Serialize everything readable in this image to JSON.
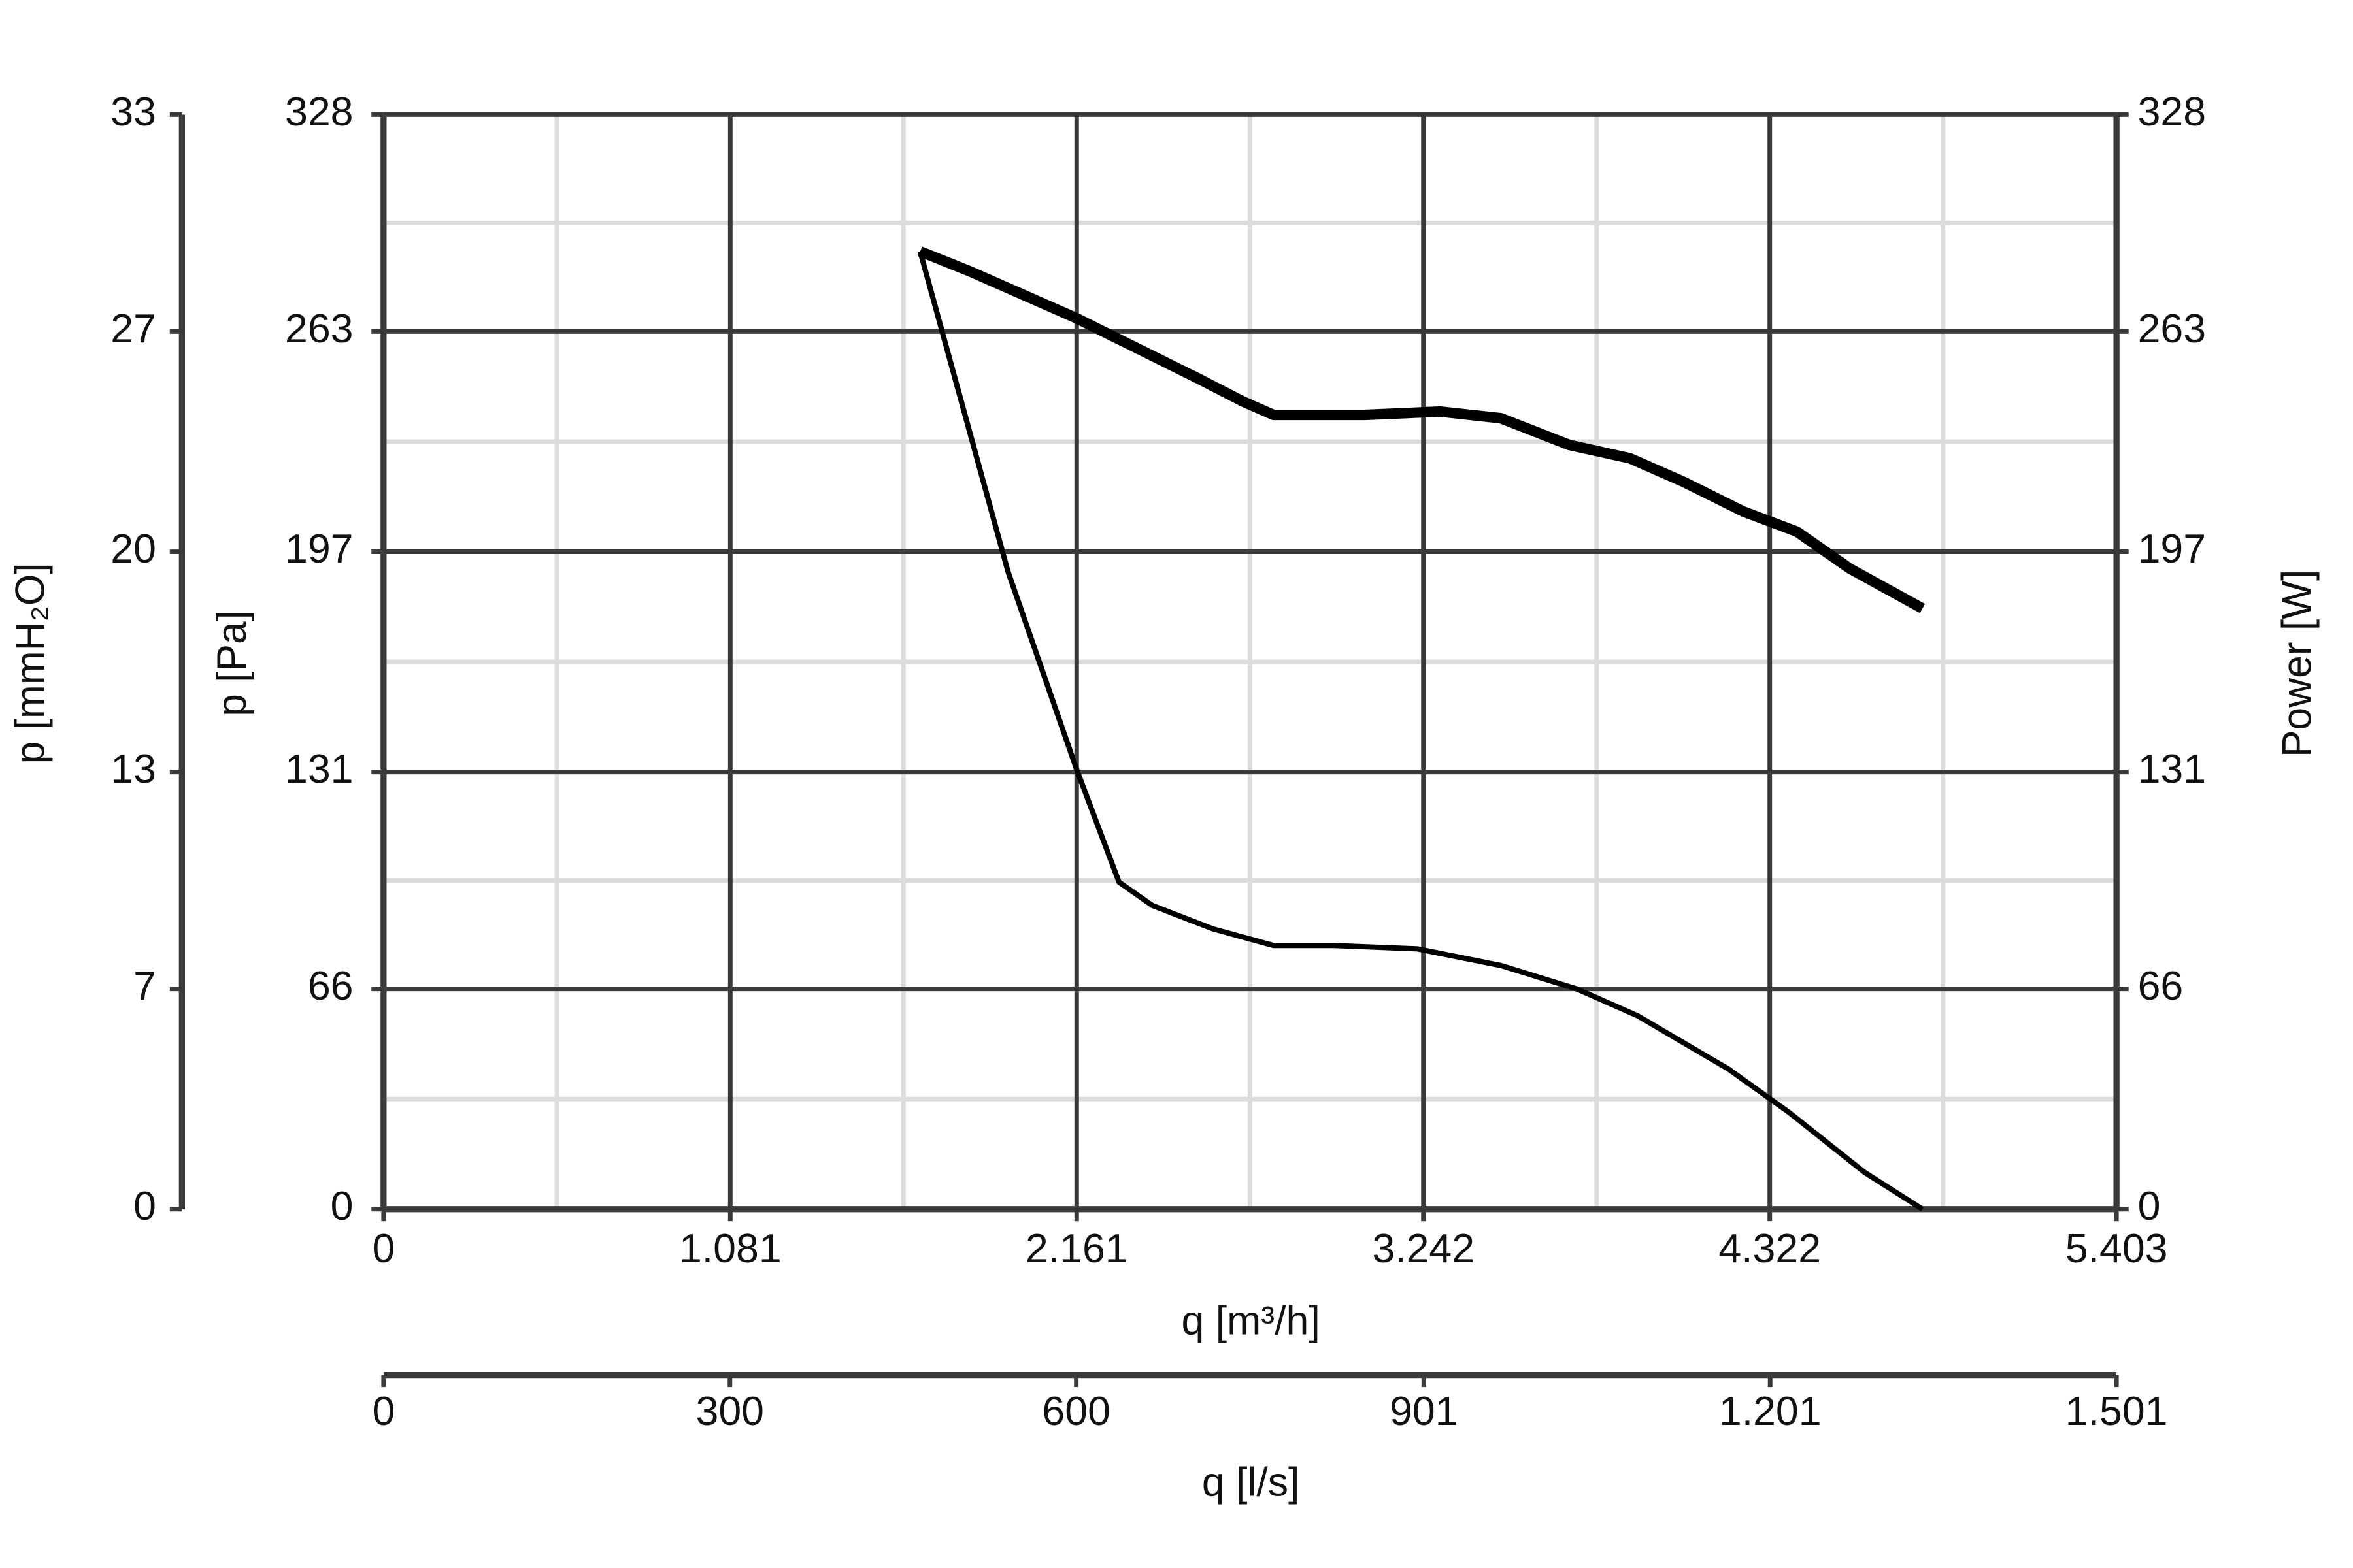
{
  "chart_data": {
    "type": "line",
    "xlabel": "q [m³/h]",
    "ylabel": "p [Pa]",
    "y2label": "Power [W]",
    "x2label": "q [l/s]",
    "y3label": "p [mmH₂O]",
    "xlim": [
      0,
      5403
    ],
    "xticks": [
      0,
      {
        "value": 1081,
        "label": "1.081"
      },
      {
        "value": 2161,
        "label": "2.161"
      },
      {
        "value": 3242,
        "label": "3.242"
      },
      {
        "value": 4322,
        "label": "4.322"
      },
      {
        "value": 5403,
        "label": "5.403"
      }
    ],
    "ylim": [
      0,
      328
    ],
    "yticks": [
      0,
      66,
      131,
      197,
      263,
      328
    ],
    "y2lim": [
      0,
      328
    ],
    "y2ticks": [
      0,
      66,
      131,
      197,
      263,
      328
    ],
    "x2lim": [
      0,
      1501
    ],
    "x2ticks": [
      0,
      300,
      600,
      901,
      {
        "value": 1201,
        "label": "1.201"
      },
      {
        "value": 1501,
        "label": "1.501"
      }
    ],
    "y3lim": [
      0,
      33.45
    ],
    "y3ticks": [
      0,
      {
        "value": 6.73,
        "label": "7"
      },
      {
        "value": 13.36,
        "label": "13"
      },
      {
        "value": 20.09,
        "label": "20"
      },
      {
        "value": 26.82,
        "label": "27"
      },
      {
        "value": 33.45,
        "label": "33"
      }
    ],
    "grid": true,
    "series": [
      {
        "color": "#000000",
        "line_width": 7,
        "x": [
          1673,
          1829,
          2018,
          2160,
          2349,
          2538,
          2680,
          2775,
          3058,
          3295,
          3484,
          3697,
          3886,
          4052,
          4241,
          4407,
          4571,
          4798
        ],
        "values": [
          287,
          281,
          273,
          267,
          258,
          249,
          242,
          238,
          238,
          239,
          237,
          229,
          225,
          218,
          209,
          203,
          192,
          180
        ]
      },
      {
        "color": "#000000",
        "line_width": 3.5,
        "axis": "y2",
        "x": [
          1673,
          1947,
          2160,
          2293,
          2397,
          2586,
          2775,
          2964,
          3224,
          3484,
          3720,
          3909,
          4193,
          4382,
          4618,
          4798
        ],
        "values": [
          287,
          191,
          132,
          98,
          91,
          84,
          79,
          79,
          78,
          73,
          66,
          58,
          42,
          29,
          11,
          0
        ]
      }
    ]
  }
}
